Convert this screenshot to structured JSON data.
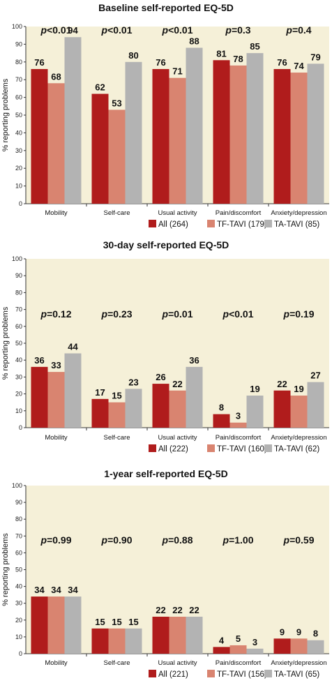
{
  "colors": {
    "all": "#b01c1c",
    "tf": "#d98470",
    "ta": "#b3b3b3",
    "plot_bg": "#f5f0d8"
  },
  "chart_data": [
    {
      "type": "bar",
      "title": "Baseline self-reported EQ-5D",
      "ylabel": "% reporting problems",
      "ylim": [
        0,
        100
      ],
      "yticks": [
        "0",
        "10",
        "20",
        "30",
        "40",
        "50",
        "60",
        "70",
        "80",
        "90",
        "100"
      ],
      "categories": [
        "Mobility",
        "Self-care",
        "Usual activity",
        "Pain/discomfort",
        "Anxiety/depression"
      ],
      "series": [
        {
          "name": "All (264)",
          "values": [
            76,
            62,
            76,
            81,
            76
          ]
        },
        {
          "name": "TF-TAVI (179)",
          "values": [
            68,
            53,
            71,
            78,
            74
          ]
        },
        {
          "name": "TA-TAVI (85)",
          "values": [
            94,
            80,
            88,
            85,
            79
          ]
        }
      ],
      "p_values": [
        {
          "prefix": "p",
          "value": "<0.01"
        },
        {
          "prefix": "p",
          "value": "<0.01"
        },
        {
          "prefix": "p",
          "value": "<0.01"
        },
        {
          "prefix": "p",
          "value": "=0.3"
        },
        {
          "prefix": "p",
          "value": "=0.4"
        }
      ],
      "legend_position": "bottom-right"
    },
    {
      "type": "bar",
      "title": "30-day self-reported EQ-5D",
      "ylabel": "% reporting problems",
      "ylim": [
        0,
        100
      ],
      "yticks": [
        "0",
        "10",
        "20",
        "30",
        "40",
        "50",
        "60",
        "70",
        "80",
        "90",
        "100"
      ],
      "categories": [
        "Mobility",
        "Self-care",
        "Usual activity",
        "Pain/discomfort",
        "Anxiety/depression"
      ],
      "series": [
        {
          "name": "All (222)",
          "values": [
            36,
            17,
            26,
            8,
            22
          ]
        },
        {
          "name": "TF-TAVI (160)",
          "values": [
            33,
            15,
            22,
            3,
            19
          ]
        },
        {
          "name": "TA-TAVI (62)",
          "values": [
            44,
            23,
            36,
            19,
            27
          ]
        }
      ],
      "p_values": [
        {
          "prefix": "p",
          "value": "=0.12"
        },
        {
          "prefix": "p",
          "value": "=0.23"
        },
        {
          "prefix": "p",
          "value": "=0.01"
        },
        {
          "prefix": "p",
          "value": "<0.01"
        },
        {
          "prefix": "p",
          "value": "=0.19"
        }
      ],
      "legend_position": "bottom-right"
    },
    {
      "type": "bar",
      "title": "1-year self-reported EQ-5D",
      "ylabel": "% reporting problems",
      "ylim": [
        0,
        100
      ],
      "yticks": [
        "0",
        "10",
        "20",
        "30",
        "40",
        "50",
        "60",
        "70",
        "80",
        "90",
        "100"
      ],
      "categories": [
        "Mobility",
        "Self-care",
        "Usual activity",
        "Pain/discomfort",
        "Anxiety/depression"
      ],
      "series": [
        {
          "name": "All (221)",
          "values": [
            34,
            15,
            22,
            4,
            9
          ]
        },
        {
          "name": "TF-TAVI (156)",
          "values": [
            34,
            15,
            22,
            5,
            9
          ]
        },
        {
          "name": "TA-TAVI (65)",
          "values": [
            34,
            15,
            22,
            3,
            8
          ]
        }
      ],
      "p_values": [
        {
          "prefix": "p",
          "value": "=0.99"
        },
        {
          "prefix": "p",
          "value": "=0.90"
        },
        {
          "prefix": "p",
          "value": "=0.88"
        },
        {
          "prefix": "p",
          "value": "=1.00"
        },
        {
          "prefix": "p",
          "value": "=0.59"
        }
      ],
      "legend_position": "bottom-right"
    }
  ]
}
